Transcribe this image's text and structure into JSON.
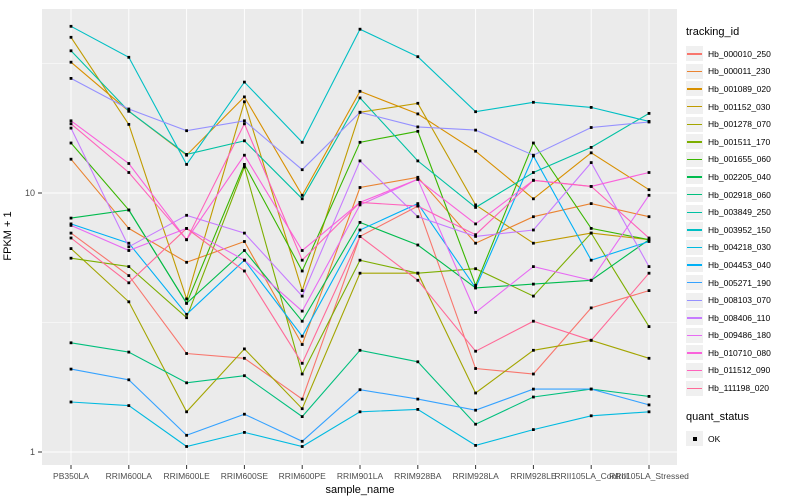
{
  "chart_data": {
    "type": "line",
    "title": "",
    "xlabel": "sample_name",
    "ylabel": "FPKM + 1",
    "y_scale": "log10",
    "ylim": [
      0.85,
      56
    ],
    "grid": true,
    "legend_position": "right",
    "y_ticks": [
      {
        "label": "1",
        "value": 1
      },
      {
        "label": "10",
        "value": 10
      }
    ],
    "y_minor_breaks": [
      3.1623,
      31.6228
    ],
    "categories": [
      "PB350LA",
      "RRIM600LA",
      "RRIM600LE",
      "RRIM600SE",
      "RRIM600PE",
      "RRIM901LA",
      "RRIM928BA",
      "RRIM928LA",
      "RRIM928LE",
      "RRII105LA_Control",
      "RRII105LA_Stressed"
    ],
    "point_marker": {
      "shape": "square",
      "color": "#000000",
      "meaning": "quant_status OK"
    },
    "colors": {
      "panel_bg": "#EBEBEB",
      "grid": "#FFFFFF",
      "point": "#000000",
      "axis_text": "#4D4D4D",
      "tick": "#333333",
      "legend_key_bg": "#F0F0F0"
    },
    "series": [
      {
        "name": "Hb_000010_250",
        "color": "#F8766D",
        "values": [
          7.0,
          4.8,
          2.4,
          2.3,
          1.6,
          6.8,
          8.9,
          2.1,
          2.0,
          3.6,
          4.2
        ]
      },
      {
        "name": "Hb_000011_230",
        "color": "#EA8331",
        "values": [
          13.5,
          7.3,
          5.4,
          6.5,
          2.6,
          10.5,
          11.5,
          6.4,
          8.1,
          9.1,
          8.1
        ]
      },
      {
        "name": "Hb_001089_020",
        "color": "#D89000",
        "values": [
          32.0,
          20.7,
          14.0,
          23.5,
          9.8,
          24.7,
          20.2,
          14.5,
          9.5,
          14.3,
          10.3
        ]
      },
      {
        "name": "Hb_001152_030",
        "color": "#C09B00",
        "values": [
          39.9,
          18.4,
          3.9,
          22.5,
          4.2,
          20.5,
          22.2,
          9.0,
          6.4,
          7.0,
          6.6
        ]
      },
      {
        "name": "Hb_001278_070",
        "color": "#A3A500",
        "values": [
          6.1,
          3.8,
          1.43,
          2.5,
          1.47,
          4.9,
          4.9,
          1.69,
          2.47,
          2.7,
          2.3
        ]
      },
      {
        "name": "Hb_001511_170",
        "color": "#7CAE00",
        "values": [
          5.6,
          5.2,
          3.3,
          12.6,
          2.0,
          5.5,
          4.9,
          5.1,
          4.0,
          7.0,
          3.05
        ]
      },
      {
        "name": "Hb_001655_060",
        "color": "#39B600",
        "values": [
          15.6,
          8.6,
          3.75,
          12.9,
          5.0,
          15.7,
          17.3,
          4.4,
          15.6,
          7.3,
          6.6
        ]
      },
      {
        "name": "Hb_002205_040",
        "color": "#00BB4E",
        "values": [
          8.0,
          8.6,
          3.75,
          6.0,
          3.2,
          7.7,
          6.3,
          4.3,
          4.45,
          4.6,
          6.6
        ]
      },
      {
        "name": "Hb_002918_060",
        "color": "#00BF7D",
        "values": [
          2.64,
          2.43,
          1.85,
          1.97,
          1.37,
          2.47,
          2.23,
          1.28,
          1.63,
          1.75,
          1.64
        ]
      },
      {
        "name": "Hb_003849_250",
        "color": "#00C1A3",
        "values": [
          35.4,
          20.7,
          14.1,
          15.9,
          9.5,
          23.3,
          13.3,
          8.8,
          12.0,
          15.0,
          20.3
        ]
      },
      {
        "name": "Hb_003952_150",
        "color": "#00BFC4",
        "values": [
          44.0,
          33.4,
          12.9,
          26.8,
          15.7,
          42.9,
          33.6,
          20.6,
          22.4,
          21.4,
          18.9
        ]
      },
      {
        "name": "Hb_004218_030",
        "color": "#00BAE0",
        "values": [
          1.56,
          1.51,
          1.05,
          1.19,
          1.05,
          1.43,
          1.46,
          1.06,
          1.22,
          1.38,
          1.43
        ]
      },
      {
        "name": "Hb_004453_040",
        "color": "#00B0F6",
        "values": [
          7.6,
          6.4,
          3.4,
          5.5,
          2.8,
          7.2,
          9.1,
          4.3,
          13.9,
          5.5,
          6.5
        ]
      },
      {
        "name": "Hb_005271_190",
        "color": "#35A2FF",
        "values": [
          2.09,
          1.9,
          1.16,
          1.4,
          1.1,
          1.74,
          1.6,
          1.45,
          1.75,
          1.75,
          1.52
        ]
      },
      {
        "name": "Hb_008103_070",
        "color": "#9590FF",
        "values": [
          27.7,
          21.1,
          17.4,
          19.0,
          12.3,
          20.5,
          18.0,
          17.5,
          14.0,
          17.9,
          18.8
        ]
      },
      {
        "name": "Hb_008406_110",
        "color": "#C77CFF",
        "values": [
          17.8,
          6.2,
          8.2,
          7.0,
          4.0,
          13.3,
          8.1,
          6.8,
          7.2,
          13.1,
          5.2
        ]
      },
      {
        "name": "Hb_009486_180",
        "color": "#E76BF3",
        "values": [
          7.5,
          6.0,
          7.3,
          5.5,
          3.5,
          9.0,
          11.3,
          3.46,
          5.2,
          4.6,
          9.8
        ]
      },
      {
        "name": "Hb_010710_080",
        "color": "#FA62DB",
        "values": [
          19.0,
          13.0,
          6.6,
          14.0,
          6.0,
          9.2,
          11.3,
          7.6,
          11.2,
          10.6,
          12.0
        ]
      },
      {
        "name": "Hb_011512_090",
        "color": "#FF62BC",
        "values": [
          18.5,
          12.0,
          6.6,
          18.5,
          5.5,
          9.2,
          8.9,
          6.9,
          11.2,
          10.6,
          6.7
        ]
      },
      {
        "name": "Hb_111198_020",
        "color": "#FF6A98",
        "values": [
          6.7,
          4.5,
          7.3,
          5.0,
          2.2,
          6.8,
          4.6,
          2.45,
          3.2,
          2.7,
          4.9
        ]
      }
    ]
  },
  "legend": {
    "tracking_title": "tracking_id",
    "quant_title": "quant_status",
    "quant_items": [
      {
        "label": "OK"
      }
    ]
  }
}
